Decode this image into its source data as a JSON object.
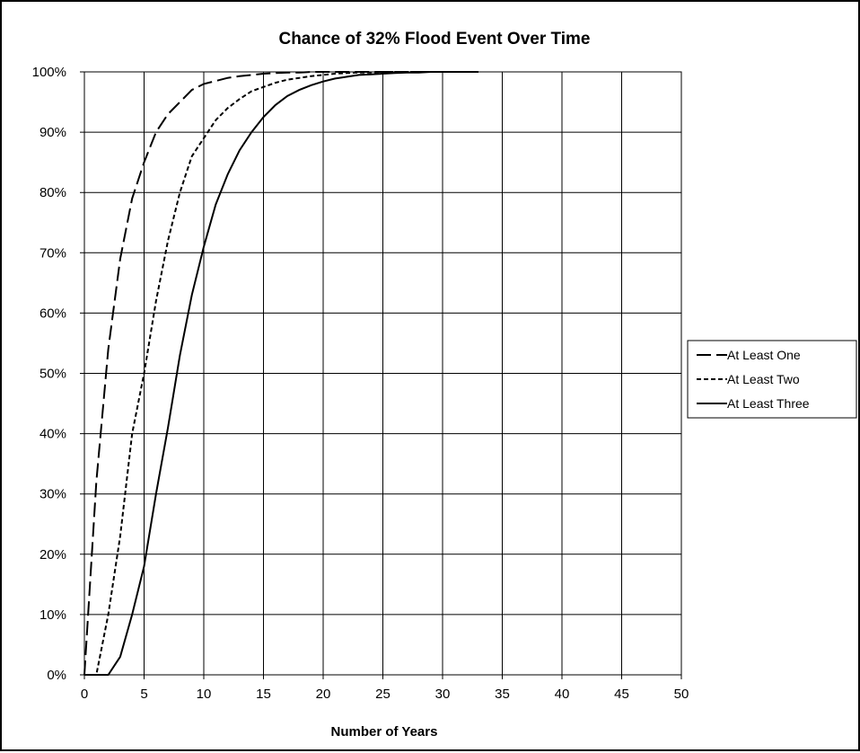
{
  "chart_data": {
    "type": "line",
    "title": "Chance of 32% Flood Event Over Time",
    "xlabel": "Number of Years",
    "ylabel": "",
    "xlim": [
      0,
      50
    ],
    "ylim": [
      0,
      100
    ],
    "x_ticks": [
      "0",
      "5",
      "10",
      "15",
      "20",
      "25",
      "30",
      "35",
      "40",
      "45",
      "50"
    ],
    "y_ticks": [
      "0%",
      "10%",
      "20%",
      "30%",
      "40%",
      "50%",
      "60%",
      "70%",
      "80%",
      "90%",
      "100%"
    ],
    "grid": true,
    "legend_position": "right",
    "x": [
      0,
      1,
      2,
      3,
      4,
      5,
      6,
      7,
      8,
      9,
      10,
      11,
      12,
      13,
      14,
      15,
      16,
      17,
      18,
      19,
      20,
      21,
      22,
      23,
      24,
      25,
      26,
      27,
      28,
      29,
      30,
      31,
      32,
      33
    ],
    "series": [
      {
        "name": "At Least One",
        "dash": "dashed",
        "values": [
          0,
          32,
          54,
          69,
          79,
          85,
          90,
          93,
          95,
          97,
          98,
          98.5,
          99,
          99.3,
          99.5,
          99.7,
          99.8,
          99.9,
          99.9,
          100,
          100,
          100,
          100,
          100,
          100,
          100,
          100,
          100,
          100,
          100,
          100,
          100,
          100,
          100
        ]
      },
      {
        "name": "At Least Two",
        "dash": "dotted",
        "values": [
          0,
          0,
          10,
          23,
          40,
          50,
          62,
          72,
          80,
          86,
          89,
          92,
          94,
          95.5,
          96.8,
          97.5,
          98.2,
          98.7,
          99,
          99.3,
          99.5,
          99.7,
          99.8,
          99.9,
          99.9,
          100,
          100,
          100,
          100,
          100,
          100,
          100,
          100,
          100
        ]
      },
      {
        "name": "At Least Three",
        "dash": "solid",
        "values": [
          0,
          0,
          0,
          3,
          10,
          18,
          30,
          41,
          53,
          63,
          71,
          78,
          83,
          87,
          90,
          92.5,
          94.5,
          96,
          97,
          97.8,
          98.4,
          98.9,
          99.2,
          99.5,
          99.6,
          99.7,
          99.8,
          99.9,
          99.9,
          100,
          100,
          100,
          100,
          100
        ]
      }
    ]
  }
}
